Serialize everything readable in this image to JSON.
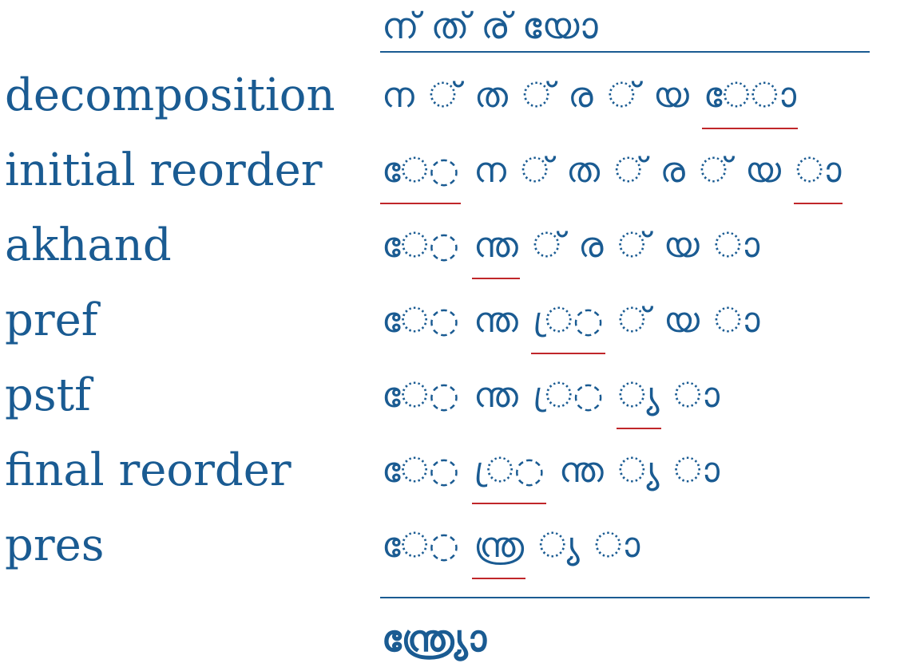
{
  "header": "ന് ത് ര് യോ",
  "result": "ന്ത്ര്യോ",
  "colors": {
    "text": "#1a5b92",
    "highlight": "#c0262a"
  },
  "steps": [
    {
      "label": "decomposition",
      "glyphs": [
        {
          "text": "ന",
          "hl": false
        },
        {
          "text": "◌്",
          "hl": false
        },
        {
          "text": "ത",
          "hl": false
        },
        {
          "text": "◌്",
          "hl": false
        },
        {
          "text": "ര",
          "hl": false
        },
        {
          "text": "◌്",
          "hl": false
        },
        {
          "text": "യ",
          "hl": false
        },
        {
          "text": "േ◌ാ",
          "hl": true
        }
      ]
    },
    {
      "label": "initial reorder",
      "glyphs": [
        {
          "text": "േ◌",
          "hl": true
        },
        {
          "text": "ന",
          "hl": false
        },
        {
          "text": "◌്",
          "hl": false
        },
        {
          "text": "ത",
          "hl": false
        },
        {
          "text": "◌്",
          "hl": false
        },
        {
          "text": "ര",
          "hl": false
        },
        {
          "text": "◌്",
          "hl": false
        },
        {
          "text": "യ",
          "hl": false
        },
        {
          "text": "◌ാ",
          "hl": true
        }
      ]
    },
    {
      "label": "akhand",
      "glyphs": [
        {
          "text": "േ◌",
          "hl": false
        },
        {
          "text": "ന്ത",
          "hl": true
        },
        {
          "text": "◌്",
          "hl": false
        },
        {
          "text": "ര",
          "hl": false
        },
        {
          "text": "◌്",
          "hl": false
        },
        {
          "text": "യ",
          "hl": false
        },
        {
          "text": "◌ാ",
          "hl": false
        }
      ]
    },
    {
      "label": "pref",
      "glyphs": [
        {
          "text": "േ◌",
          "hl": false
        },
        {
          "text": "ന്ത",
          "hl": false
        },
        {
          "text": "്ര◌",
          "hl": true
        },
        {
          "text": "◌്",
          "hl": false
        },
        {
          "text": "യ",
          "hl": false
        },
        {
          "text": "◌ാ",
          "hl": false
        }
      ]
    },
    {
      "label": "pstf",
      "glyphs": [
        {
          "text": "േ◌",
          "hl": false
        },
        {
          "text": "ന്ത",
          "hl": false
        },
        {
          "text": "്ര◌",
          "hl": false
        },
        {
          "text": "◌്യ",
          "hl": true
        },
        {
          "text": "◌ാ",
          "hl": false
        }
      ]
    },
    {
      "label": "final reorder",
      "glyphs": [
        {
          "text": "േ◌",
          "hl": false
        },
        {
          "text": "്ര◌",
          "hl": true
        },
        {
          "text": "ന്ത",
          "hl": false
        },
        {
          "text": "◌്യ",
          "hl": false
        },
        {
          "text": "◌ാ",
          "hl": false
        }
      ]
    },
    {
      "label": "pres",
      "glyphs": [
        {
          "text": "േ◌",
          "hl": false
        },
        {
          "text": "ന്ത്ര",
          "hl": true
        },
        {
          "text": "◌്യ",
          "hl": false
        },
        {
          "text": "◌ാ",
          "hl": false
        }
      ]
    }
  ]
}
